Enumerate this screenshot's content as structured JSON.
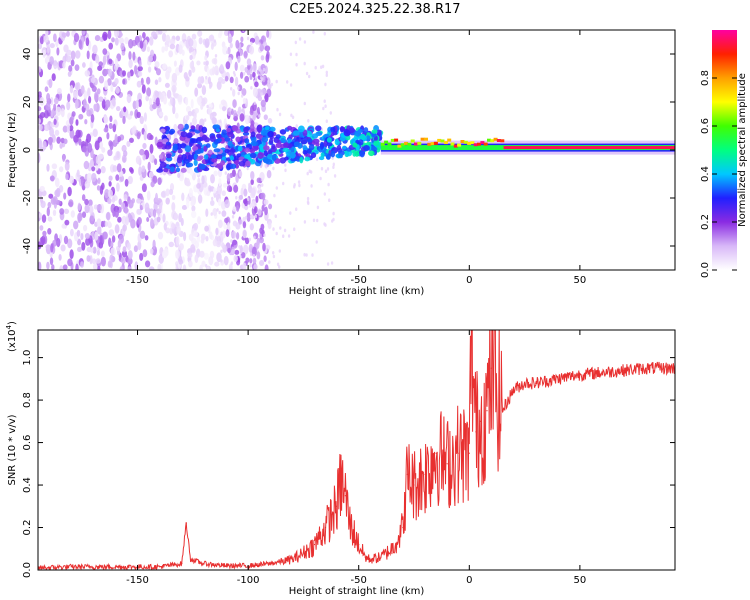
{
  "title": "C2E5.2024.325.22.38.R17",
  "chart_data": [
    {
      "type": "heatmap",
      "title": "C2E5.2024.325.22.38.R17",
      "xlabel": "Height of straight line (km)",
      "ylabel": "Frequency (Hz)",
      "xlim": [
        -195,
        93
      ],
      "ylim": [
        -50,
        50
      ],
      "xticks": [
        -150,
        -100,
        -50,
        0,
        50
      ],
      "yticks": [
        -40,
        -20,
        0,
        20,
        40
      ],
      "colorbar": {
        "label": "Normalized spectral amplitude",
        "range": [
          0,
          1
        ],
        "ticks": [
          0.0,
          0.2,
          0.4,
          0.6,
          0.8
        ],
        "colormap": [
          "#ffffff",
          "#d8b8f8",
          "#8a2be2",
          "#2020ff",
          "#00c8ff",
          "#00ff80",
          "#40ff00",
          "#ffff00",
          "#ffa000",
          "#ff2000",
          "#ff00a0"
        ]
      },
      "features": [
        {
          "name": "scattered noise",
          "x_range": [
            -195,
            -90
          ],
          "y_range": [
            -50,
            50
          ],
          "amplitude": 0.15
        },
        {
          "name": "signal band",
          "x_range": [
            -140,
            -40
          ],
          "y_center": 0,
          "amplitude": 0.35
        },
        {
          "name": "stable carrier",
          "x_range": [
            -40,
            93
          ],
          "y_center": 1,
          "amplitude": 0.95
        }
      ]
    },
    {
      "type": "line",
      "xlabel": "Height of straight line (km)",
      "ylabel": "SNR (10 * v/v)",
      "yscale_label": "(x10",
      "yscale_exp": "4",
      "xlim": [
        -195,
        93
      ],
      "ylim": [
        0,
        1.13
      ],
      "xticks": [
        -150,
        -100,
        -50,
        0,
        50
      ],
      "yticks": [
        0.0,
        0.2,
        0.4,
        0.6,
        0.8,
        1.0
      ],
      "series": [
        {
          "name": "SNR",
          "color": "#e83030",
          "x": [
            -195,
            -180,
            -160,
            -140,
            -130,
            -128,
            -126,
            -120,
            -110,
            -100,
            -90,
            -80,
            -75,
            -70,
            -65,
            -60,
            -58,
            -56,
            -54,
            -50,
            -47,
            -45,
            -40,
            -35,
            -30,
            -28,
            -25,
            -20,
            -15,
            -10,
            -5,
            0,
            1,
            3,
            5,
            8,
            10,
            15,
            20,
            25,
            30,
            40,
            50,
            60,
            70,
            80,
            93
          ],
          "values": [
            0.01,
            0.015,
            0.015,
            0.015,
            0.03,
            0.22,
            0.05,
            0.03,
            0.02,
            0.02,
            0.03,
            0.05,
            0.08,
            0.12,
            0.2,
            0.3,
            0.42,
            0.35,
            0.22,
            0.12,
            0.06,
            0.05,
            0.06,
            0.1,
            0.2,
            0.45,
            0.4,
            0.45,
            0.55,
            0.5,
            0.55,
            0.55,
            1.1,
            0.65,
            0.7,
            0.75,
            0.95,
            0.75,
            0.85,
            0.88,
            0.88,
            0.9,
            0.92,
            0.93,
            0.94,
            0.95,
            0.95
          ]
        }
      ]
    }
  ]
}
